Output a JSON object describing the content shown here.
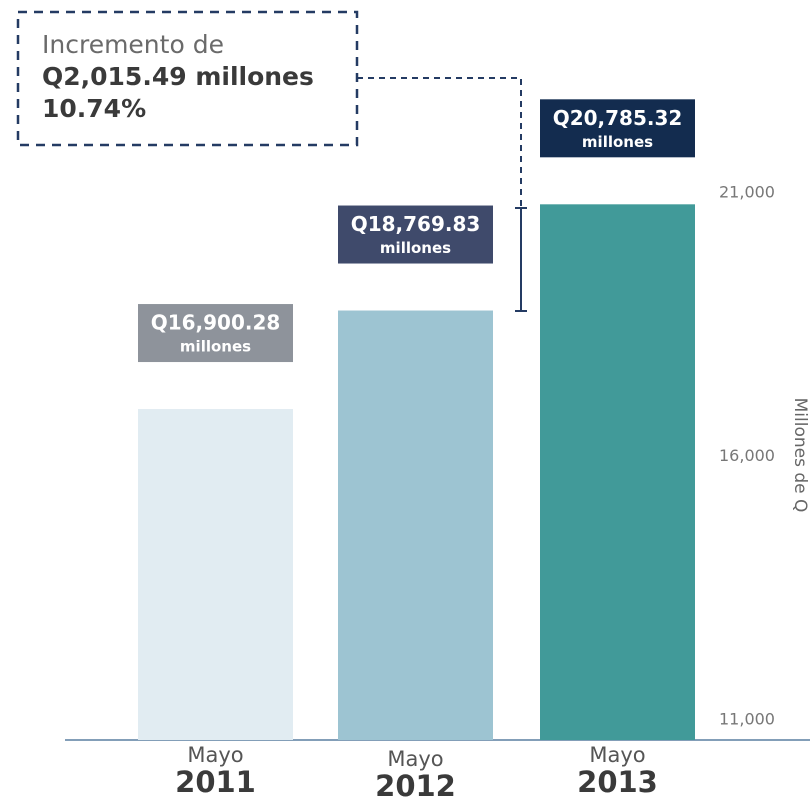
{
  "chart_data": {
    "type": "bar",
    "categories": [
      "2011",
      "2012",
      "2013"
    ],
    "category_prefix": [
      "Mayo",
      "Mayo",
      "Mayo"
    ],
    "values": [
      16900.28,
      18769.83,
      20785.32
    ],
    "value_labels": [
      "Q16,900.28",
      "Q18,769.83",
      "Q20,785.32"
    ],
    "value_label_unit": "millones",
    "colors": [
      "#e1ecf2",
      "#9dc4d2",
      "#419a99"
    ],
    "label_colors": [
      "#8e939b",
      "#3f4a6b",
      "#132c4f"
    ],
    "ylabel": "Millones de Q",
    "ylim": [
      10620,
      21000
    ],
    "yticks": [
      {
        "value": 11000,
        "label": "11,000"
      },
      {
        "value": 16000,
        "label": "16,000"
      },
      {
        "value": 21000,
        "label": "21,000"
      }
    ],
    "annotation": {
      "lines": [
        "Incremento de",
        "Q2,015.49 millones",
        "10.74%"
      ]
    }
  }
}
